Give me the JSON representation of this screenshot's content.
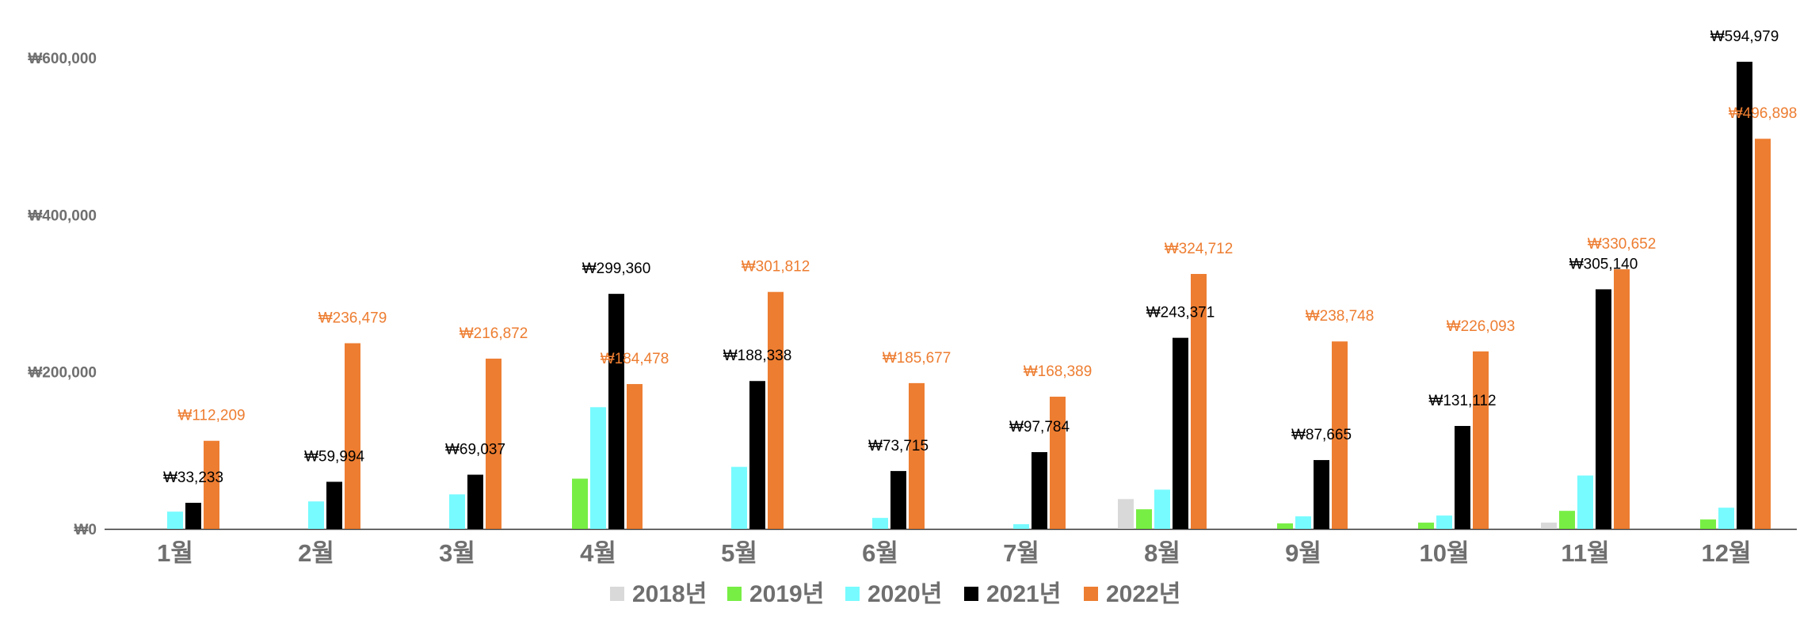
{
  "chart_data": {
    "type": "bar",
    "title": "",
    "xlabel": "",
    "ylabel": "",
    "ylim": [
      0,
      600000
    ],
    "yticks": [
      0,
      200000,
      400000,
      600000
    ],
    "ytick_labels": [
      "₩0",
      "₩200,000",
      "₩400,000",
      "₩600,000"
    ],
    "grid": false,
    "legend_position": "bottom",
    "categories": [
      "1월",
      "2월",
      "3월",
      "4월",
      "5월",
      "6월",
      "7월",
      "8월",
      "9월",
      "10월",
      "11월",
      "12월"
    ],
    "series": [
      {
        "name": "2018년",
        "color": "#d9d9d9",
        "label_color": null,
        "values": [
          0,
          0,
          0,
          0,
          0,
          0,
          0,
          38000,
          0,
          0,
          8000,
          0
        ],
        "labels": [
          null,
          null,
          null,
          null,
          null,
          null,
          null,
          null,
          null,
          null,
          null,
          null
        ]
      },
      {
        "name": "2019년",
        "color": "#77ee44",
        "label_color": null,
        "values": [
          0,
          0,
          0,
          64000,
          0,
          0,
          0,
          25000,
          7000,
          8000,
          23000,
          12000
        ],
        "labels": [
          null,
          null,
          null,
          null,
          null,
          null,
          null,
          null,
          null,
          null,
          null,
          null
        ]
      },
      {
        "name": "2020년",
        "color": "#77fbff",
        "label_color": null,
        "values": [
          22000,
          35000,
          44000,
          155000,
          79000,
          14000,
          6000,
          50000,
          16000,
          17000,
          68000,
          27000
        ],
        "labels": [
          null,
          null,
          null,
          null,
          null,
          null,
          null,
          null,
          null,
          null,
          null,
          null
        ]
      },
      {
        "name": "2021년",
        "color": "#000000",
        "label_color": "#000000",
        "values": [
          33233,
          59994,
          69037,
          299360,
          188338,
          73715,
          97784,
          243371,
          87665,
          131112,
          305140,
          594979
        ],
        "labels": [
          "₩33,233",
          "₩59,994",
          "₩69,037",
          "₩299,360",
          "₩188,338",
          "₩73,715",
          "₩97,784",
          "₩243,371",
          "₩87,665",
          "₩131,112",
          "₩305,140",
          "₩594,979"
        ]
      },
      {
        "name": "2022년",
        "color": "#ed7d31",
        "label_color": "#ed7d31",
        "values": [
          112209,
          236479,
          216872,
          184478,
          301812,
          185677,
          168389,
          324712,
          238748,
          226093,
          330652,
          496898
        ],
        "labels": [
          "₩112,209",
          "₩236,479",
          "₩216,872",
          "₩184,478",
          "₩301,812",
          "₩185,677",
          "₩168,389",
          "₩324,712",
          "₩238,748",
          "₩226,093",
          "₩330,652",
          "₩496,898"
        ]
      }
    ]
  }
}
